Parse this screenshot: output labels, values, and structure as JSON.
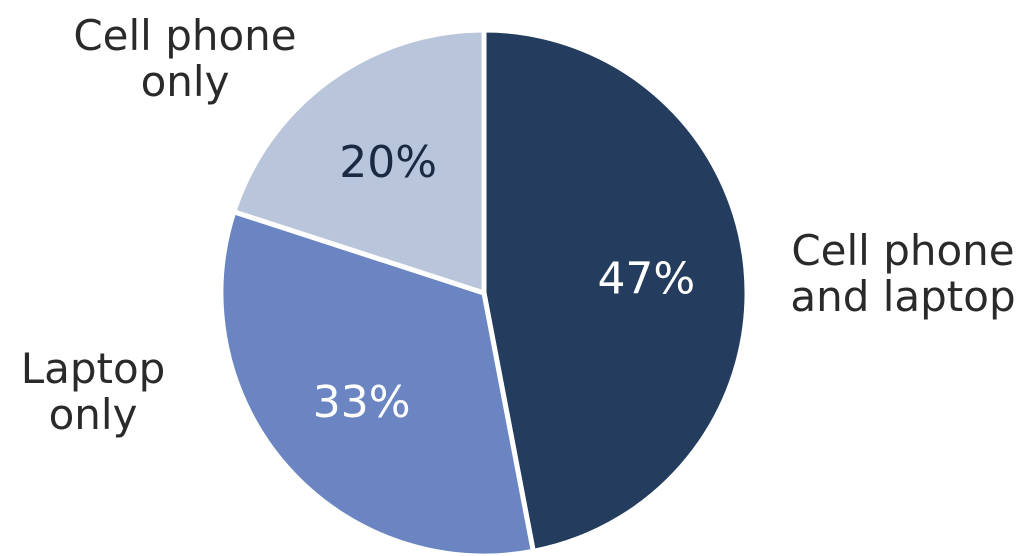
{
  "chart_data": {
    "type": "pie",
    "slices": [
      {
        "label_lines": [
          "Cell phone",
          "and laptop"
        ],
        "value": 47,
        "value_label": "47%",
        "color": "#243d5f",
        "value_text_color": "#ffffff"
      },
      {
        "label_lines": [
          "Laptop",
          "only"
        ],
        "value": 33,
        "value_label": "33%",
        "color": "#6a85c2",
        "value_text_color": "#ffffff"
      },
      {
        "label_lines": [
          "Cell phone",
          "only"
        ],
        "value": 20,
        "value_label": "20%",
        "color": "#b9c5da",
        "value_text_color": "#1b2a40"
      }
    ],
    "start_angle_deg": 0,
    "direction": "clockwise",
    "legend": "none"
  }
}
